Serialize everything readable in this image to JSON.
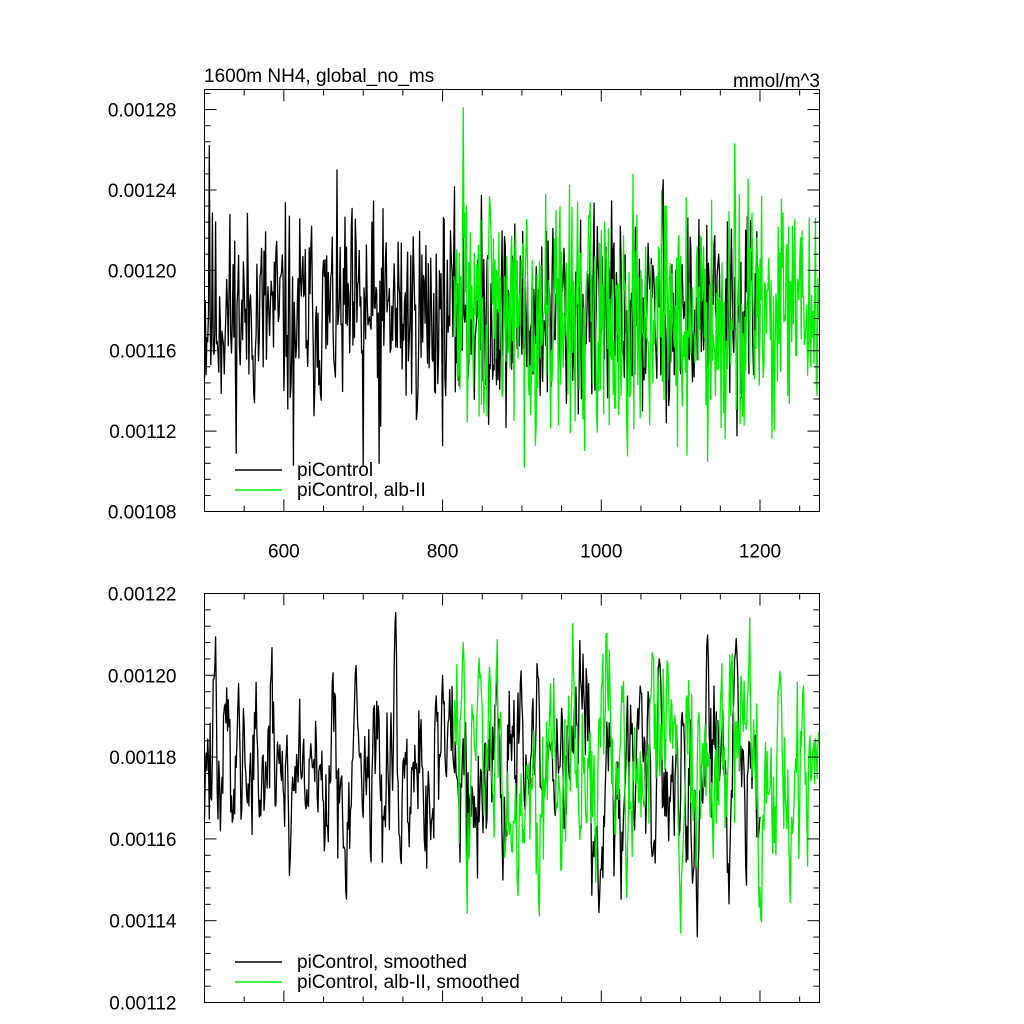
{
  "chart_data": [
    {
      "type": "line",
      "title": "1600m NH4, global_no_ms",
      "units": "mmol/m^3",
      "xlabel": "",
      "ylabel": "",
      "xlim": [
        500,
        1275
      ],
      "ylim": [
        0.00108,
        0.00129
      ],
      "xticks": [
        600,
        800,
        1000,
        1200
      ],
      "xtick_labels": [
        "600",
        "800",
        "1000",
        "1200"
      ],
      "yticks": [
        0.00108,
        0.00112,
        0.00116,
        0.0012,
        0.00124,
        0.00128
      ],
      "ytick_labels": [
        "0.00108",
        "0.00112",
        "0.00116",
        "0.00120",
        "0.00124",
        "0.00128"
      ],
      "grid": false,
      "legend": "bottom-left",
      "series": [
        {
          "name": "piControl",
          "color": "#000000",
          "x_start": 500,
          "x_end": 1200,
          "mean": 0.001178,
          "amplitude": 2.8e-05,
          "seed": 11,
          "smoothing": 1,
          "keypoints": [
            [
              506,
              0.001262
            ],
            [
              612,
              0.001103
            ],
            [
              700,
              0.001103
            ],
            [
              720,
              0.001104
            ],
            [
              1078,
              0.001245
            ]
          ]
        },
        {
          "name": "piControl, alb-II",
          "color": "#00ee00",
          "x_start": 814,
          "x_end": 1275,
          "mean": 0.001178,
          "amplitude": 3.2e-05,
          "seed": 29,
          "smoothing": 1,
          "keypoints": [
            [
              826,
              0.001281
            ],
            [
              1108,
              0.001108
            ],
            [
              1168,
              0.001263
            ],
            [
              1270,
              0.001226
            ]
          ]
        }
      ]
    },
    {
      "type": "line",
      "title": "",
      "xlabel": "",
      "ylabel": "",
      "xlim": [
        500,
        1275
      ],
      "ylim": [
        0.00112,
        0.00122
      ],
      "xticks": [
        600,
        800,
        1000,
        1200
      ],
      "xtick_labels": [],
      "yticks": [
        0.00112,
        0.00114,
        0.00116,
        0.00118,
        0.0012,
        0.00122
      ],
      "ytick_labels": [
        "0.00112",
        "0.00114",
        "0.00116",
        "0.00118",
        "0.00120",
        "0.00122"
      ],
      "grid": false,
      "legend": "bottom-left",
      "series": [
        {
          "name": "piControl, smoothed",
          "color": "#000000",
          "x_start": 500,
          "x_end": 1200,
          "mean": 0.001178,
          "amplitude": 1.1e-05,
          "seed": 47,
          "smoothing": 3,
          "keypoints": [
            [
              543,
              0.001198
            ],
            [
              800,
              0.0012
            ],
            [
              997,
              0.001142
            ],
            [
              1073,
              0.001204
            ],
            [
              1170,
              0.001209
            ]
          ]
        },
        {
          "name": "piControl, alb-II, smoothed",
          "color": "#00ee00",
          "x_start": 814,
          "x_end": 1275,
          "mean": 0.001178,
          "amplitude": 1.2e-05,
          "seed": 83,
          "smoothing": 3,
          "keypoints": [
            [
              826,
              0.001208
            ],
            [
              1100,
              0.001137
            ],
            [
              1225,
              0.001201
            ],
            [
              1275,
              0.001184
            ]
          ]
        }
      ]
    }
  ]
}
